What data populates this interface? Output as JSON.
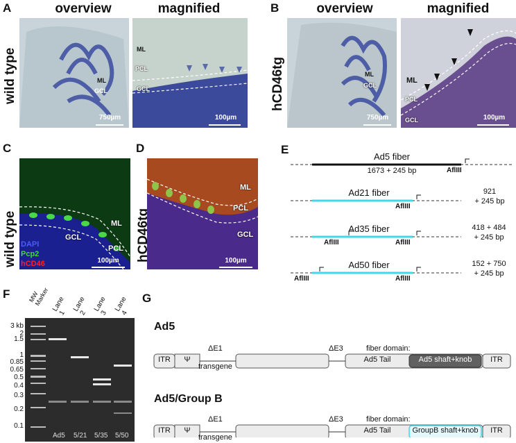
{
  "panelA": {
    "letter": "A",
    "overview": "overview",
    "magnified": "magnified",
    "side": "wild type",
    "ov_ml": "ML",
    "ov_gcl": "GCL",
    "ov_scale": "750µm",
    "mg_ml": "ML",
    "mg_pcl": "PCL",
    "mg_gcl": "GCL",
    "mg_scale": "100µm"
  },
  "panelB": {
    "letter": "B",
    "overview": "overview",
    "magnified": "magnified",
    "side": "hCD46tg",
    "ov_ml": "ML",
    "ov_gcl": "GCL",
    "ov_scale": "750µm",
    "mg_ml": "ML",
    "mg_pcl": "PCL",
    "mg_gcl": "GCL",
    "mg_scale": "100µm"
  },
  "panelC": {
    "letter": "C",
    "side": "wild type",
    "ml": "ML",
    "gcl": "GCL",
    "pcl": "PCL",
    "dapi": "DAPI",
    "pcp2": "Pcp2",
    "hcd46": "hCD46",
    "scale": "100µm",
    "colors": {
      "dapi": "#4a5cff",
      "pcp2": "#3cdc3c",
      "hcd46": "#ff2020"
    }
  },
  "panelD": {
    "letter": "D",
    "side": "hCD46tg",
    "ml": "ML",
    "pcl": "PCL",
    "gcl": "GCL",
    "scale": "100µm"
  },
  "panelE": {
    "letter": "E",
    "rows": [
      {
        "name": "Ad5 fiber",
        "sub": "1673 + 245 bp",
        "right": ""
      },
      {
        "name": "Ad21 fiber",
        "sub": "",
        "right1": "921",
        "right2": "+ 245 bp"
      },
      {
        "name": "Ad35 fiber",
        "sub": "",
        "right1": "418 + 484",
        "right2": "+ 245 bp"
      },
      {
        "name": "Ad50 fiber",
        "sub": "",
        "right1": "152 + 750",
        "right2": "+ 245 bp"
      }
    ],
    "site": "AflIII",
    "colors": {
      "ad5": "#111111",
      "groupB": "#3fd9e6"
    }
  },
  "panelF": {
    "letter": "F",
    "marker": "MW\nMarker",
    "lanes": [
      "Lane\n1",
      "Lane\n2",
      "Lane\n3",
      "Lane\n4"
    ],
    "kb": [
      "3 kb",
      "2",
      "1.5",
      "1",
      "0.85",
      "0.65",
      "0.5",
      "0.4",
      "0.3",
      "0.2",
      "0.1"
    ],
    "bottom": [
      "Ad5",
      "5/21",
      "5/35",
      "5/50"
    ]
  },
  "panelG": {
    "letter": "G",
    "title1": "Ad5",
    "title2": "Ad5/Group B",
    "de1": "ΔE1",
    "de3": "ΔE3",
    "fiber": "fiber domain:",
    "itr": "ITR",
    "psi": "Ψ",
    "transgene": "transgene",
    "tail": "Ad5 Tail",
    "shaft1": "Ad5 shaft+knob",
    "shaft2": "GroupB shaft+knob"
  }
}
